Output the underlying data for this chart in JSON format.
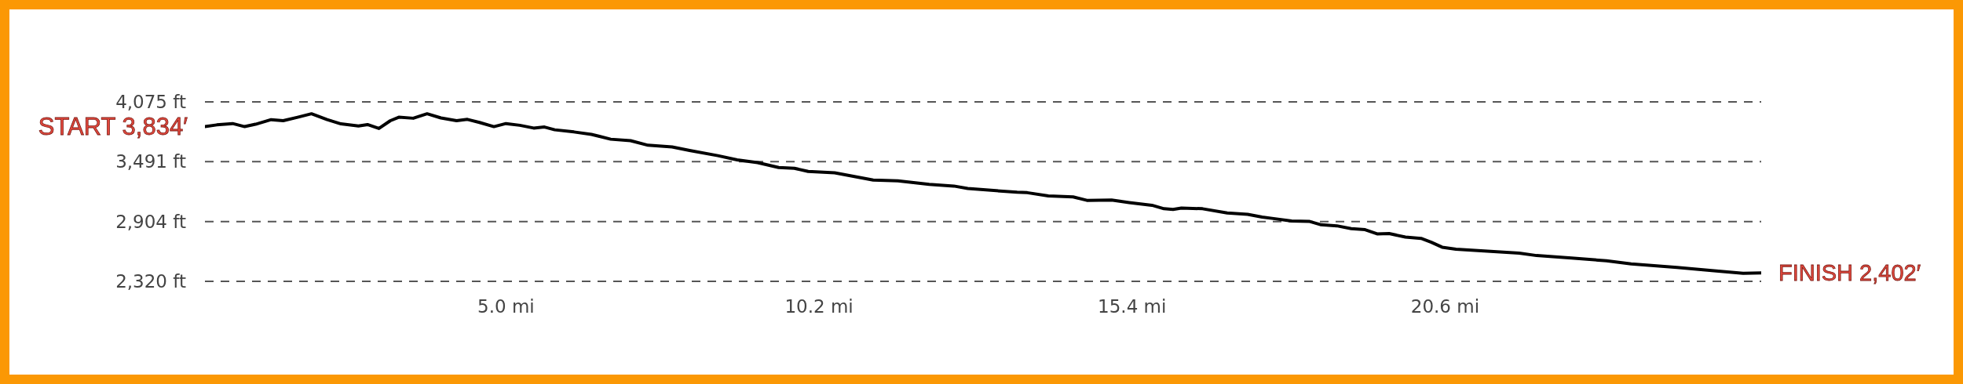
{
  "chart_data": {
    "type": "line",
    "x": [
      0,
      0.197,
      0.46,
      0.66,
      0.84,
      1.1,
      1.3,
      1.54,
      1.77,
      2.03,
      2.26,
      2.55,
      2.7,
      2.89,
      3.08,
      3.22,
      3.46,
      3.69,
      3.92,
      4.18,
      4.36,
      4.56,
      4.8,
      5.0,
      5.23,
      5.46,
      5.64,
      5.81,
      6.13,
      6.42,
      6.74,
      7.07,
      7.36,
      7.76,
      8.05,
      8.52,
      8.84,
      9.18,
      9.53,
      9.79,
      10.02,
      10.46,
      11.1,
      11.51,
      12.03,
      12.44,
      12.67,
      13.49,
      13.66,
      14.01,
      14.42,
      14.65,
      15.06,
      15.35,
      15.73,
      15.93,
      16.08,
      16.22,
      16.57,
      16.98,
      17.32,
      17.56,
      17.75,
      18.05,
      18.34,
      18.54,
      18.8,
      19.04,
      19.27,
      19.47,
      19.67,
      19.94,
      20.2,
      20.37,
      20.55,
      20.78,
      21.25,
      21.83,
      22.12,
      22.7,
      23.28,
      23.69,
      24.45,
      25.03,
      25.55,
      25.85
    ],
    "series": [
      {
        "color": "#000000",
        "values": [
          3834,
          3850,
          3863,
          3833,
          3856,
          3901,
          3891,
          3925,
          3959,
          3901,
          3860,
          3839,
          3853,
          3815,
          3891,
          3925,
          3915,
          3959,
          3918,
          3891,
          3904,
          3874,
          3833,
          3863,
          3846,
          3819,
          3829,
          3802,
          3781,
          3757,
          3710,
          3696,
          3651,
          3634,
          3600,
          3549,
          3508,
          3481,
          3433,
          3426,
          3395,
          3382,
          3310,
          3303,
          3269,
          3252,
          3228,
          3191,
          3187,
          3156,
          3146,
          3112,
          3115,
          3091,
          3064,
          3030,
          3023,
          3037,
          3030,
          2989,
          2975,
          2948,
          2934,
          2910,
          2907,
          2873,
          2863,
          2835,
          2825,
          2784,
          2787,
          2753,
          2740,
          2702,
          2654,
          2634,
          2617,
          2596,
          2572,
          2548,
          2521,
          2490,
          2456,
          2426,
          2398,
          2402
        ]
      }
    ],
    "xlim": [
      0,
      25.85
    ],
    "xticks": [
      {
        "value": 5.0,
        "label": "5.0 mi"
      },
      {
        "value": 10.2,
        "label": "10.2 mi"
      },
      {
        "value": 15.4,
        "label": "15.4 mi"
      },
      {
        "value": 20.6,
        "label": "20.6 mi"
      }
    ],
    "ylim": [
      2320,
      4075
    ],
    "yticks": [
      {
        "value": 2320,
        "label": "2,320 ft"
      },
      {
        "value": 2904,
        "label": "2,904 ft"
      },
      {
        "value": 3491,
        "label": "3,491 ft"
      },
      {
        "value": 4075,
        "label": "4,075 ft"
      }
    ],
    "grid": "y",
    "line_style": "solid",
    "annotations": [
      {
        "text": "START 3,834′",
        "x": 0,
        "y": 3834
      },
      {
        "text": "FINISH 2,402′",
        "x": 25.85,
        "y": 2402
      }
    ]
  }
}
